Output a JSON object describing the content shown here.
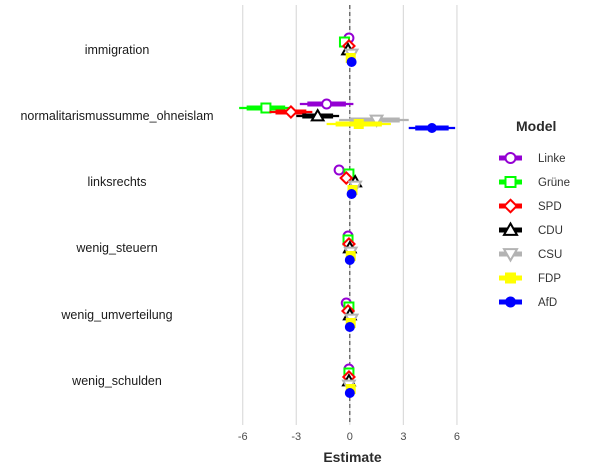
{
  "chart_data": {
    "type": "dot-whisker",
    "xlabel": "Estimate",
    "xlim": [
      -6.6,
      6.9
    ],
    "xticks": [
      -6,
      -3,
      0,
      3,
      6
    ],
    "xtick_labels": [
      "-6",
      "-3",
      "0",
      "3",
      "6"
    ],
    "grid": "vertical major lines",
    "reference_line": 0,
    "legend": {
      "title": "Model",
      "position": "right"
    },
    "categories": [
      "immigration",
      "normalitarismussumme_ohneislam",
      "linksrechts",
      "wenig_steuern",
      "wenig_umverteilung",
      "wenig_schulden"
    ],
    "series": [
      {
        "name": "Linke",
        "color": "#9400d3",
        "shape": "circle-open",
        "estimates": [
          -0.05,
          -1.3,
          -0.6,
          -0.1,
          -0.2,
          -0.05
        ],
        "ci_low": [
          -0.2,
          -2.8,
          -0.8,
          -0.25,
          -0.35,
          -0.2
        ],
        "ci_high": [
          0.1,
          0.2,
          -0.4,
          0.05,
          -0.05,
          0.1
        ]
      },
      {
        "name": "Grüne",
        "color": "#00ff00",
        "shape": "square-open",
        "estimates": [
          -0.3,
          -4.7,
          -0.05,
          -0.1,
          -0.05,
          -0.05
        ],
        "ci_low": [
          -0.45,
          -6.2,
          -0.2,
          -0.25,
          -0.2,
          -0.2
        ],
        "ci_high": [
          -0.15,
          -3.2,
          0.1,
          0.05,
          0.1,
          0.1
        ]
      },
      {
        "name": "SPD",
        "color": "#ff0000",
        "shape": "diamond-open",
        "estimates": [
          -0.05,
          -3.3,
          -0.2,
          -0.05,
          -0.1,
          -0.05
        ],
        "ci_low": [
          -0.2,
          -4.5,
          -0.35,
          -0.2,
          -0.25,
          -0.2
        ],
        "ci_high": [
          0.1,
          -2.1,
          -0.05,
          0.1,
          0.05,
          0.1
        ]
      },
      {
        "name": "CDU",
        "color": "#000000",
        "shape": "triangle-up-open",
        "estimates": [
          -0.1,
          -1.8,
          0.3,
          0.0,
          0.0,
          -0.05
        ],
        "ci_low": [
          -0.25,
          -3.0,
          0.15,
          -0.15,
          -0.15,
          -0.2
        ],
        "ci_high": [
          0.05,
          -0.6,
          0.45,
          0.15,
          0.15,
          0.1
        ]
      },
      {
        "name": "CSU",
        "color": "#b3b3b3",
        "shape": "triangle-down-open",
        "estimates": [
          0.1,
          1.5,
          0.3,
          0.05,
          0.1,
          -0.05
        ],
        "ci_low": [
          -0.1,
          -0.6,
          0.05,
          -0.15,
          -0.1,
          -0.25
        ],
        "ci_high": [
          0.3,
          3.3,
          0.55,
          0.25,
          0.3,
          0.15
        ]
      },
      {
        "name": "FDP",
        "color": "#ffff00",
        "shape": "square-filled",
        "estimates": [
          0.05,
          0.5,
          0.15,
          0.05,
          0.05,
          0.05
        ],
        "ci_low": [
          -0.1,
          -1.3,
          0.0,
          -0.1,
          -0.1,
          -0.1
        ],
        "ci_high": [
          0.2,
          2.3,
          0.3,
          0.2,
          0.2,
          0.2
        ]
      },
      {
        "name": "AfD",
        "color": "#0000ff",
        "shape": "circle-filled",
        "estimates": [
          0.1,
          4.6,
          0.1,
          0.0,
          0.0,
          0.0
        ],
        "ci_low": [
          0.0,
          3.3,
          0.0,
          -0.1,
          -0.1,
          -0.1
        ],
        "ci_high": [
          0.2,
          5.9,
          0.2,
          0.1,
          0.1,
          0.1
        ]
      }
    ]
  }
}
